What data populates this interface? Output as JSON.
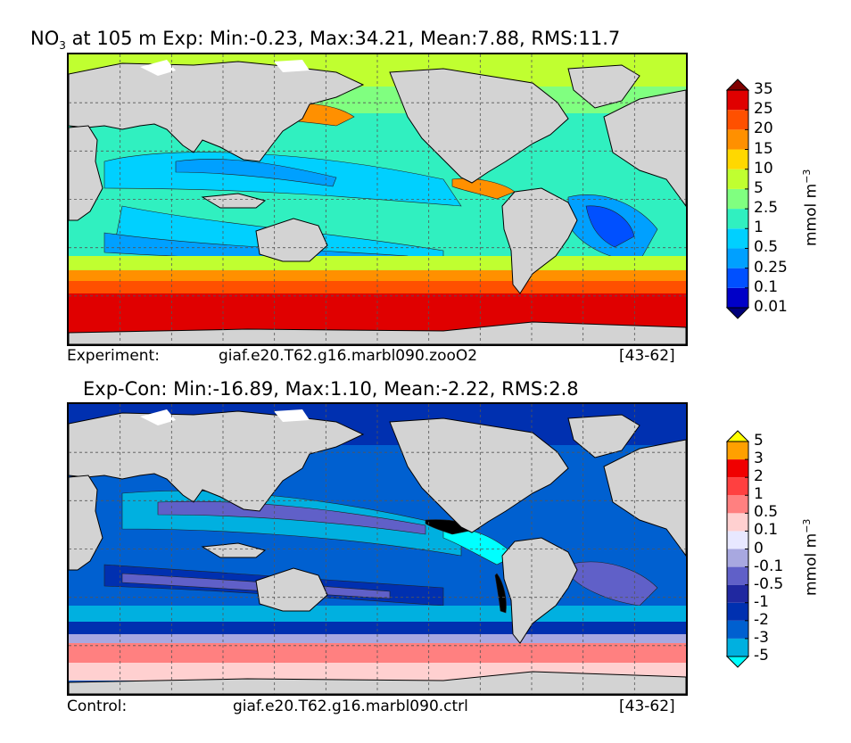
{
  "chart_data": [
    {
      "type": "heatmap",
      "title_var": "NO",
      "title_sub": "3",
      "title_rest": " at 105 m Exp: Min:-0.23, Max:34.21, Mean:7.88, RMS:11.7",
      "stats": {
        "min": -0.23,
        "max": 34.21,
        "mean": 7.88,
        "rms": 11.7
      },
      "footer": {
        "left": "Experiment:",
        "center": "giaf.e20.T62.g16.marbl090.zooO2",
        "right": "[43-62]"
      },
      "colorbar": {
        "unit": "mmol m",
        "unit_sup": "−3",
        "levels": [
          "0.01",
          "0.1",
          "0.25",
          "0.5",
          "1",
          "2.5",
          "5",
          "10",
          "15",
          "20",
          "25",
          "35"
        ],
        "colors": [
          "#00007a",
          "#0000c8",
          "#0050ff",
          "#00a0ff",
          "#00d0ff",
          "#30f0c0",
          "#80ff80",
          "#c0ff30",
          "#ffd800",
          "#ff9000",
          "#ff5000",
          "#e00000",
          "#800000"
        ]
      },
      "palette_regions": {
        "north": "#b8f23a",
        "subtropics": "#0090ff",
        "southern": "#e00000",
        "mid": "#40f0b0"
      }
    },
    {
      "type": "heatmap",
      "title": "Exp-Con: Min:-16.89, Max:1.10, Mean:-2.22, RMS:2.8",
      "stats": {
        "min": -16.89,
        "max": 1.1,
        "mean": -2.22,
        "rms": 2.8
      },
      "footer": {
        "left": "Control:",
        "center": "giaf.e20.T62.g16.marbl090.ctrl",
        "right": "[43-62]"
      },
      "colorbar": {
        "unit": "mmol m",
        "unit_sup": "−3",
        "levels": [
          "-5",
          "-3",
          "-2",
          "-1",
          "-0.5",
          "-0.1",
          "0",
          "0.1",
          "0.5",
          "1",
          "2",
          "3",
          "5"
        ],
        "colors": [
          "#00ffff",
          "#00b0e0",
          "#0060d0",
          "#0030b0",
          "#2028a0",
          "#6060c8",
          "#a8a8e0",
          "#e8e8ff",
          "#ffd0d0",
          "#ff8080",
          "#ff4040",
          "#f00000",
          "#ffa000",
          "#ffff00"
        ]
      }
    }
  ]
}
